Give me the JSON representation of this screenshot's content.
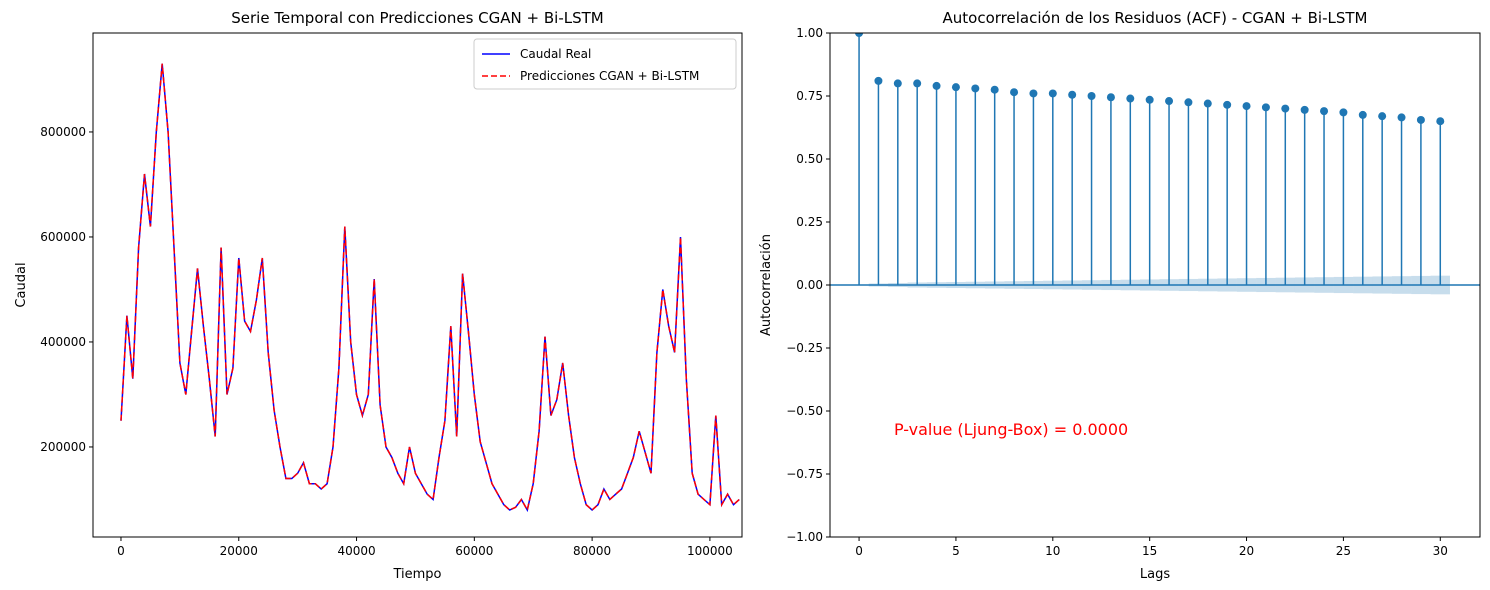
{
  "chart_data": [
    {
      "type": "line",
      "title": "Serie Temporal con Predicciones CGAN + Bi-LSTM",
      "x_label": "Tiempo",
      "y_label": "Caudal",
      "x": [
        0,
        1000,
        2000,
        3000,
        4000,
        5000,
        6000,
        7000,
        8000,
        9000,
        10000,
        11000,
        12000,
        13000,
        14000,
        15000,
        16000,
        17000,
        18000,
        19000,
        20000,
        21000,
        22000,
        23000,
        24000,
        25000,
        26000,
        27000,
        28000,
        29000,
        30000,
        31000,
        32000,
        33000,
        34000,
        35000,
        36000,
        37000,
        38000,
        39000,
        40000,
        41000,
        42000,
        43000,
        44000,
        45000,
        46000,
        47000,
        48000,
        49000,
        50000,
        51000,
        52000,
        53000,
        54000,
        55000,
        56000,
        57000,
        58000,
        59000,
        60000,
        61000,
        62000,
        63000,
        64000,
        65000,
        66000,
        67000,
        68000,
        69000,
        70000,
        71000,
        72000,
        73000,
        74000,
        75000,
        76000,
        77000,
        78000,
        79000,
        80000,
        81000,
        82000,
        83000,
        84000,
        85000,
        86000,
        87000,
        88000,
        89000,
        90000,
        91000,
        92000,
        93000,
        94000,
        95000,
        96000,
        97000,
        98000,
        99000,
        100000,
        101000,
        102000,
        103000,
        104000,
        105000
      ],
      "series": [
        {
          "name": "Caudal Real",
          "color": "#0000ff",
          "dash": false,
          "values": [
            250000,
            450000,
            330000,
            580000,
            720000,
            620000,
            800000,
            930000,
            800000,
            580000,
            360000,
            300000,
            420000,
            540000,
            430000,
            330000,
            220000,
            580000,
            300000,
            350000,
            560000,
            440000,
            420000,
            480000,
            560000,
            380000,
            270000,
            200000,
            140000,
            140000,
            150000,
            170000,
            130000,
            130000,
            120000,
            130000,
            200000,
            350000,
            620000,
            400000,
            300000,
            260000,
            300000,
            520000,
            280000,
            200000,
            180000,
            150000,
            130000,
            200000,
            150000,
            130000,
            110000,
            100000,
            180000,
            250000,
            430000,
            220000,
            530000,
            420000,
            300000,
            210000,
            170000,
            130000,
            110000,
            90000,
            80000,
            85000,
            100000,
            80000,
            130000,
            230000,
            410000,
            260000,
            290000,
            360000,
            260000,
            180000,
            130000,
            90000,
            80000,
            90000,
            120000,
            100000,
            110000,
            120000,
            150000,
            180000,
            230000,
            190000,
            150000,
            380000,
            500000,
            430000,
            380000,
            600000,
            330000,
            150000,
            110000,
            100000,
            90000,
            260000,
            90000,
            110000,
            90000,
            100000
          ]
        },
        {
          "name": "Predicciones CGAN + Bi-LSTM",
          "color": "#ff0000",
          "dash": true,
          "values": [
            250000,
            450000,
            330000,
            580000,
            720000,
            620000,
            800000,
            930000,
            800000,
            580000,
            360000,
            300000,
            420000,
            540000,
            430000,
            330000,
            220000,
            580000,
            300000,
            350000,
            560000,
            440000,
            420000,
            480000,
            560000,
            380000,
            270000,
            200000,
            140000,
            140000,
            150000,
            170000,
            130000,
            130000,
            120000,
            130000,
            200000,
            350000,
            620000,
            400000,
            300000,
            260000,
            300000,
            520000,
            280000,
            200000,
            180000,
            150000,
            130000,
            200000,
            150000,
            130000,
            110000,
            100000,
            180000,
            250000,
            430000,
            220000,
            530000,
            420000,
            300000,
            210000,
            170000,
            130000,
            110000,
            90000,
            80000,
            85000,
            100000,
            80000,
            130000,
            230000,
            410000,
            260000,
            290000,
            360000,
            260000,
            180000,
            130000,
            90000,
            80000,
            90000,
            120000,
            100000,
            110000,
            120000,
            150000,
            180000,
            230000,
            190000,
            150000,
            380000,
            500000,
            430000,
            380000,
            600000,
            330000,
            150000,
            110000,
            100000,
            90000,
            260000,
            90000,
            110000,
            90000,
            100000
          ]
        }
      ],
      "xlim": [
        -4750,
        105450
      ],
      "xticks": [
        0,
        20000,
        40000,
        60000,
        80000,
        100000
      ],
      "ylim": [
        28500,
        988500
      ],
      "yticks": [
        200000,
        400000,
        600000,
        800000
      ],
      "legend": "upper right"
    },
    {
      "type": "stem",
      "title": "Autocorrelación de los Residuos (ACF) - CGAN + Bi-LSTM",
      "x_label": "Lags",
      "y_label": "Autocorrelación",
      "x": [
        0,
        1,
        2,
        3,
        4,
        5,
        6,
        7,
        8,
        9,
        10,
        11,
        12,
        13,
        14,
        15,
        16,
        17,
        18,
        19,
        20,
        21,
        22,
        23,
        24,
        25,
        26,
        27,
        28,
        29,
        30
      ],
      "values": [
        1.0,
        0.81,
        0.8,
        0.8,
        0.79,
        0.785,
        0.78,
        0.775,
        0.765,
        0.76,
        0.76,
        0.755,
        0.75,
        0.745,
        0.74,
        0.735,
        0.73,
        0.725,
        0.72,
        0.715,
        0.71,
        0.705,
        0.7,
        0.695,
        0.69,
        0.685,
        0.675,
        0.67,
        0.665,
        0.655,
        0.65
      ],
      "confidence_halfwidth": [
        0,
        0.006,
        0.008,
        0.01,
        0.011,
        0.012,
        0.013,
        0.014,
        0.015,
        0.016,
        0.017,
        0.018,
        0.019,
        0.02,
        0.021,
        0.022,
        0.023,
        0.024,
        0.025,
        0.026,
        0.027,
        0.028,
        0.029,
        0.03,
        0.031,
        0.032,
        0.033,
        0.034,
        0.035,
        0.036,
        0.037
      ],
      "color": "#1f77b4",
      "xlim": [
        -1.5,
        32.05
      ],
      "xticks": [
        0,
        5,
        10,
        15,
        20,
        25,
        30
      ],
      "ylim": [
        -1,
        1
      ],
      "yticks": [
        {
          "value": -1,
          "label": "−1.00"
        },
        {
          "value": -0.75,
          "label": "−0.75"
        },
        {
          "value": -0.5,
          "label": "−0.50"
        },
        {
          "value": -0.25,
          "label": "−0.25"
        },
        {
          "value": 0,
          "label": "0.00"
        },
        {
          "value": 0.25,
          "label": "0.25"
        },
        {
          "value": 0.5,
          "label": "0.50"
        },
        {
          "value": 0.75,
          "label": "0.75"
        },
        {
          "value": 1,
          "label": "1.00"
        }
      ],
      "annotation": {
        "text": "P-value (Ljung-Box) = 0.0000",
        "color": "#ff0000"
      }
    }
  ]
}
